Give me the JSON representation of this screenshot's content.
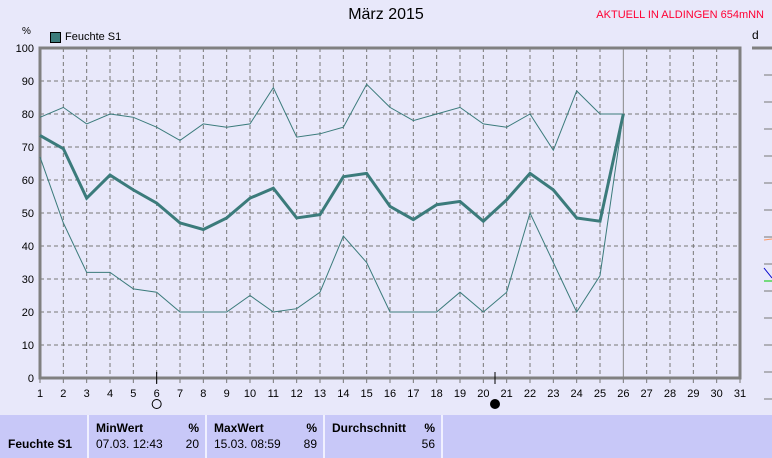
{
  "header": {
    "title": "März 2015",
    "station": "AKTUELL IN ALDINGEN 654mNN"
  },
  "right_panel": {
    "label": "d"
  },
  "chart_data": {
    "type": "line",
    "title": "März 2015",
    "ylabel": "%",
    "ylim": [
      0,
      100
    ],
    "xlim": [
      1,
      31
    ],
    "x": [
      1,
      2,
      3,
      4,
      5,
      6,
      7,
      8,
      9,
      10,
      11,
      12,
      13,
      14,
      15,
      16,
      17,
      18,
      19,
      20,
      21,
      22,
      23,
      24,
      25,
      26
    ],
    "xticks": [
      1,
      2,
      3,
      4,
      5,
      6,
      7,
      8,
      9,
      10,
      11,
      12,
      13,
      14,
      15,
      16,
      17,
      18,
      19,
      20,
      21,
      22,
      23,
      24,
      25,
      26,
      27,
      28,
      29,
      30,
      31
    ],
    "yticks": [
      0,
      10,
      20,
      30,
      40,
      50,
      60,
      70,
      80,
      90,
      100
    ],
    "grid": true,
    "legend": "top-left",
    "current_day": 26,
    "color": "#3b7b7b",
    "legend_entries": [
      "Feuchte S1"
    ],
    "series": [
      {
        "role": "max",
        "values": [
          79,
          82,
          77,
          80,
          79,
          76,
          72,
          77,
          76,
          77,
          88,
          73,
          74,
          76,
          89,
          82,
          78,
          80,
          82,
          77,
          76,
          80,
          69,
          87,
          80,
          80
        ]
      },
      {
        "name": "Feuchte S1",
        "role": "avg",
        "values": [
          73.5,
          69.5,
          54.5,
          61.5,
          57,
          53,
          47,
          45,
          48.5,
          54.5,
          57.5,
          48.5,
          49.5,
          61,
          62,
          52,
          48,
          52.5,
          53.5,
          47.5,
          54,
          62,
          57,
          48.5,
          47.5,
          80
        ]
      },
      {
        "role": "min",
        "values": [
          67,
          47,
          32,
          32,
          27,
          26,
          20,
          20,
          20,
          25,
          20,
          21,
          26,
          43,
          35,
          20,
          20,
          20,
          26,
          20,
          26,
          50,
          35,
          20,
          31,
          80
        ]
      }
    ],
    "moon_phases": [
      {
        "day": 6,
        "phase": "full"
      },
      {
        "day": 20.5,
        "phase": "new"
      }
    ]
  },
  "table": {
    "row_label": "Feuchte S1",
    "min": {
      "header": "MinWert",
      "unit": "%",
      "date": "07.03.  12:43",
      "value": "20"
    },
    "max": {
      "header": "MaxWert",
      "unit": "%",
      "date": "15.03.  08:59",
      "value": "89"
    },
    "avg": {
      "header": "Durchschnitt",
      "unit": "%",
      "value": "56"
    }
  }
}
